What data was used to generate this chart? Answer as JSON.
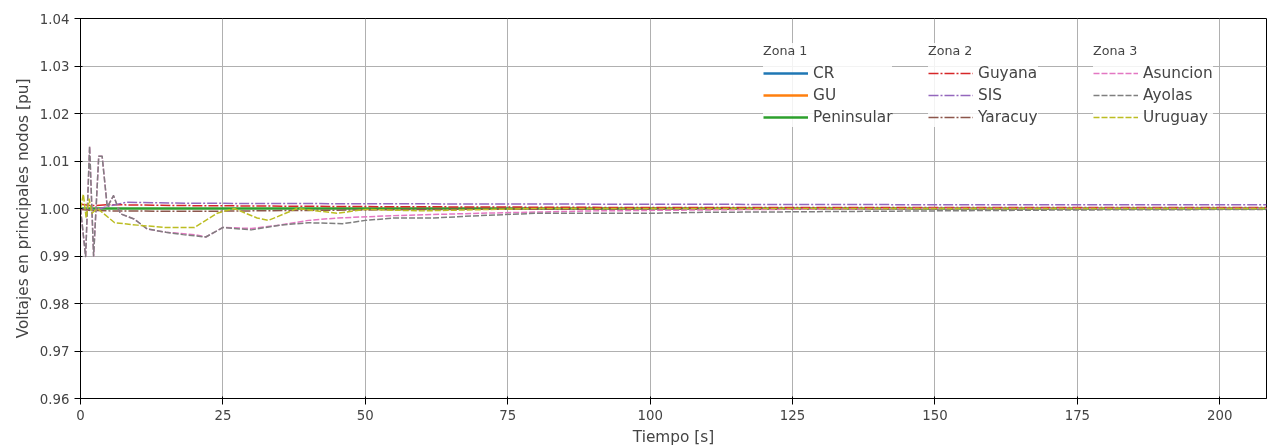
{
  "chart_data": {
    "type": "line",
    "xlabel": "Tiempo [s]",
    "ylabel": "Voltajes en principales nodos [pu]",
    "xlim": [
      0,
      208.2
    ],
    "ylim": [
      0.96,
      1.04
    ],
    "xticks": [
      0,
      25,
      50,
      75,
      100,
      125,
      150,
      175,
      200
    ],
    "yticks": [
      {
        "value": 0.96,
        "label": "0.96"
      },
      {
        "value": 0.97,
        "label": "0.97"
      },
      {
        "value": 0.98,
        "label": "0.98"
      },
      {
        "value": 0.99,
        "label": "0.99"
      },
      {
        "value": 1.0,
        "label": "1.00"
      },
      {
        "value": 1.01,
        "label": "1.01"
      },
      {
        "value": 1.02,
        "label": "1.02"
      },
      {
        "value": 1.03,
        "label": "1.03"
      },
      {
        "value": 1.04,
        "label": "1.04"
      }
    ],
    "grid": true,
    "legend": "top right",
    "annotations": [
      "Zona 1",
      "Zona 2",
      "Zona 3"
    ],
    "series": [
      {
        "name": "CR",
        "color": "#1f77b4",
        "line_style": "solid"
      },
      {
        "name": "GU",
        "color": "#ff7f0e",
        "line_style": "solid"
      },
      {
        "name": "Peninsular",
        "color": "#2ca02c",
        "line_style": "solid",
        "x": [
          0,
          208.2
        ],
        "values": [
          1.0,
          1.0
        ]
      },
      {
        "name": "Guyana",
        "color": "#d62728",
        "line_style": "dashdot",
        "x": [
          0,
          2,
          5,
          20,
          50,
          100,
          150,
          208.2
        ],
        "values": [
          1.0009,
          1.0006,
          1.0008,
          1.0006,
          1.0004,
          1.0002,
          1.0002,
          1.0002
        ]
      },
      {
        "name": "SIS",
        "color": "#9467bd",
        "line_style": "dashdot",
        "x": [
          0,
          2,
          5,
          8,
          20,
          50,
          100,
          150,
          208.2
        ],
        "values": [
          1.0,
          0.9995,
          1.0005,
          1.0013,
          1.0011,
          1.001,
          1.0009,
          1.0008,
          1.0008
        ]
      },
      {
        "name": "Yaracuy",
        "color": "#8c564b",
        "line_style": "dashdot",
        "x": [
          0,
          2,
          5,
          20,
          40,
          60,
          100,
          208.2
        ],
        "values": [
          0.9998,
          0.9996,
          0.9995,
          0.9994,
          0.9996,
          0.9998,
          0.9999,
          1.0
        ]
      },
      {
        "name": "Asuncion",
        "color": "#e377c2",
        "line_style": "dashed",
        "x": [
          0,
          0.9,
          1.6,
          2.3,
          3.2,
          3.8,
          4.7,
          5.8,
          7,
          9.4,
          11.7,
          15,
          20,
          22,
          25,
          30,
          35,
          40,
          45,
          55,
          70,
          90,
          120,
          150,
          208.2
        ],
        "values": [
          1.0,
          0.9899,
          1.0131,
          0.99,
          1.011,
          1.011,
          1.0003,
          1.0027,
          0.9989,
          0.9978,
          0.9957,
          0.995,
          0.9945,
          0.994,
          0.996,
          0.9958,
          0.9965,
          0.9975,
          0.998,
          0.9985,
          0.999,
          0.9995,
          0.9998,
          1.0,
          1.0
        ]
      },
      {
        "name": "Ayolas",
        "color": "#7f7f7f",
        "line_style": "dashed",
        "x": [
          0,
          0.9,
          1.6,
          2.3,
          3.2,
          3.8,
          4.7,
          5.8,
          7,
          9.4,
          11.7,
          15,
          18,
          22,
          25,
          30,
          35,
          40,
          46,
          50,
          55,
          62,
          70,
          80,
          100,
          110,
          125,
          150,
          175,
          208.2
        ],
        "values": [
          1.0,
          0.9899,
          1.0131,
          0.99,
          1.011,
          1.011,
          1.0003,
          1.0027,
          0.9989,
          0.9978,
          0.9957,
          0.995,
          0.9945,
          0.994,
          0.996,
          0.9955,
          0.9965,
          0.997,
          0.9968,
          0.9975,
          0.998,
          0.998,
          0.9985,
          0.999,
          0.999,
          0.9992,
          0.9993,
          0.9995,
          0.9997,
          0.9998
        ]
      },
      {
        "name": "Uruguay",
        "color": "#bcbd22",
        "line_style": "dashed",
        "x": [
          0,
          0.5,
          1,
          1.5,
          2,
          3,
          6,
          10,
          15,
          20,
          24,
          27,
          31,
          33,
          36,
          38,
          45,
          50,
          60,
          80,
          120,
          208.2
        ],
        "values": [
          1.0,
          1.003,
          0.998,
          1.002,
          0.999,
          1.0,
          0.997,
          0.9965,
          0.996,
          0.996,
          0.999,
          1.0,
          0.998,
          0.9975,
          0.999,
          1.0,
          0.999,
          0.9998,
          0.9995,
          1.0,
          1.0,
          1.0
        ]
      }
    ]
  }
}
